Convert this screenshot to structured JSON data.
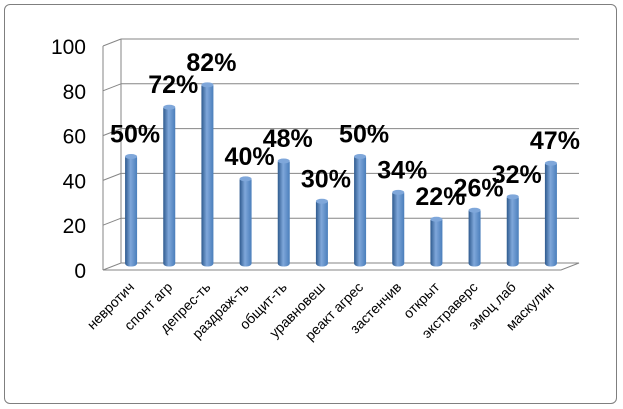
{
  "chart_data": {
    "type": "bar",
    "title": "",
    "xlabel": "",
    "ylabel": "",
    "ylim": [
      0,
      100
    ],
    "yticks": [
      0,
      20,
      40,
      60,
      80,
      100
    ],
    "grid": true,
    "legend": "none",
    "categories": [
      "невротич",
      "спонт агр",
      "депрес-ть",
      "раздраж-ть",
      "общит-ть",
      "уравновеш",
      "реакт агрес",
      "застенчив",
      "открыт",
      "экстраверс",
      "эмоц лаб",
      "маскулин"
    ],
    "values": [
      50,
      72,
      82,
      40,
      48,
      30,
      50,
      34,
      22,
      26,
      32,
      47
    ],
    "data_labels": [
      "50%",
      "72%",
      "82%",
      "40%",
      "48%",
      "30%",
      "50%",
      "34%",
      "22%",
      "26%",
      "32%",
      "47%"
    ],
    "colors": {
      "bar": "#4a7ebb",
      "bar_dark": "#2e5a8e",
      "bar_light": "#7fa7da",
      "grid": "#868686",
      "wall": "#ffffff"
    }
  }
}
